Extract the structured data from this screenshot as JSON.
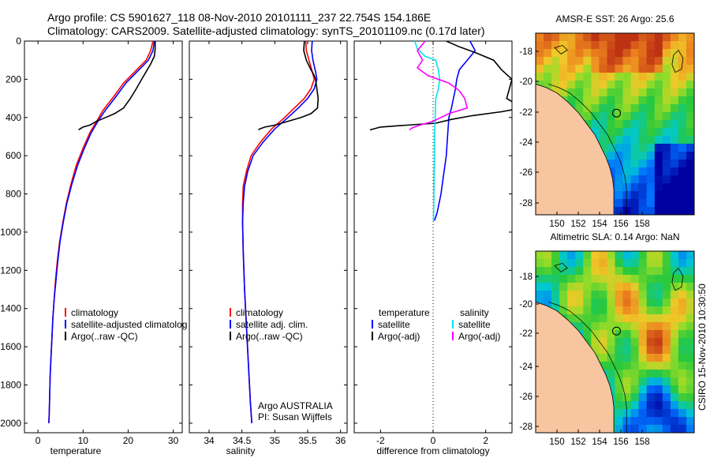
{
  "header": {
    "line1": "Argo profile: CS 5901627_118 08-Nov-2010 20101111_237 22.754S 154.186E",
    "line2": "Climatology: CARS2009. Satellite-adjusted climatology: synTS_20101109.nc (0.17d later)"
  },
  "side_stamp": "CSIRO 15-Nov-2010 10:30:50",
  "pi_text": {
    "line1": "Argo AUSTRALIA",
    "line2": "PI: Susan Wijffels"
  },
  "colors": {
    "climatology": "#ff0000",
    "satellite": "#0000ff",
    "argo": "#000000",
    "sat_salinity": "#00e5ee",
    "argo_salinity": "#ff00ff",
    "land": "#f7c59f"
  },
  "maps": [
    {
      "title": "AMSR-E SST: 26 Argo: 25.6",
      "xticks": [
        "150",
        "152",
        "154",
        "156",
        "158"
      ],
      "yticks": [
        "-18",
        "-20",
        "-22",
        "-24",
        "-26",
        "-28"
      ]
    },
    {
      "title": "Altimetric SLA: 0.14 Argo: NaN",
      "xticks": [
        "150",
        "152",
        "154",
        "156",
        "158"
      ],
      "yticks": [
        "-18",
        "-20",
        "-22",
        "-24",
        "-26",
        "-28"
      ]
    }
  ],
  "chart_data": [
    {
      "type": "line",
      "xlabel": "temperature",
      "ylabel": "",
      "xlim": [
        -3,
        32
      ],
      "ylim": [
        2050,
        0
      ],
      "xticks": [
        "0",
        "10",
        "20",
        "30"
      ],
      "yticks": [
        "0",
        "200",
        "400",
        "600",
        "800",
        "1000",
        "1200",
        "1400",
        "1600",
        "1800",
        "2000"
      ],
      "legend": [
        "climatology",
        "satellite-adjusted climatolog",
        "Argo(..raw -QC)"
      ],
      "series": [
        {
          "name": "climatology",
          "color": "#ff0000",
          "points": [
            [
              25.5,
              0
            ],
            [
              25,
              50
            ],
            [
              24,
              100
            ],
            [
              21.5,
              160
            ],
            [
              19,
              220
            ],
            [
              16.5,
              300
            ],
            [
              14.5,
              360
            ],
            [
              13,
              420
            ],
            [
              11.5,
              480
            ],
            [
              10,
              560
            ],
            [
              8.5,
              650
            ],
            [
              7.3,
              750
            ],
            [
              6.3,
              850
            ],
            [
              5.5,
              950
            ],
            [
              4.8,
              1050
            ],
            [
              4.3,
              1150
            ],
            [
              3.9,
              1250
            ],
            [
              3.6,
              1350
            ],
            [
              3.3,
              1450
            ],
            [
              3.1,
              1550
            ],
            [
              2.9,
              1650
            ],
            [
              2.7,
              1750
            ],
            [
              2.6,
              1850
            ],
            [
              2.5,
              1950
            ],
            [
              2.4,
              2000
            ]
          ]
        },
        {
          "name": "satellite-adjusted climatolog",
          "color": "#0000ff",
          "points": [
            [
              25.8,
              0
            ],
            [
              25.5,
              50
            ],
            [
              24.5,
              100
            ],
            [
              22,
              160
            ],
            [
              19.5,
              220
            ],
            [
              17,
              300
            ],
            [
              15,
              360
            ],
            [
              13.3,
              420
            ],
            [
              11.8,
              480
            ],
            [
              10.3,
              560
            ],
            [
              8.8,
              650
            ],
            [
              7.5,
              750
            ],
            [
              6.4,
              850
            ],
            [
              5.6,
              950
            ],
            [
              4.9,
              1050
            ],
            [
              4.4,
              1150
            ],
            [
              4,
              1250
            ],
            [
              3.6,
              1350
            ],
            [
              3.3,
              1450
            ],
            [
              3.1,
              1550
            ],
            [
              2.9,
              1650
            ],
            [
              2.7,
              1750
            ],
            [
              2.6,
              1850
            ],
            [
              2.5,
              1950
            ],
            [
              2.4,
              2000
            ]
          ]
        },
        {
          "name": "Argo(..raw -QC)",
          "color": "#000000",
          "points": [
            [
              26,
              0
            ],
            [
              26,
              40
            ],
            [
              25.8,
              80
            ],
            [
              25,
              120
            ],
            [
              24,
              160
            ],
            [
              23,
              200
            ],
            [
              21.8,
              250
            ],
            [
              20.5,
              300
            ],
            [
              19,
              350
            ],
            [
              17,
              380
            ],
            [
              15,
              400
            ],
            [
              13,
              420
            ],
            [
              11.5,
              440
            ],
            [
              10,
              450
            ],
            [
              9.3,
              460
            ],
            [
              9,
              465
            ]
          ]
        }
      ]
    },
    {
      "type": "line",
      "xlabel": "salinity",
      "ylabel": "",
      "xlim": [
        33.7,
        36.1
      ],
      "ylim": [
        2050,
        0
      ],
      "xticks": [
        "34",
        "34.5",
        "35",
        "35.5",
        "36"
      ],
      "yticks": [],
      "legend": [
        "climatology",
        "satellite adj. clim.",
        "Argo(..raw -QC)"
      ],
      "series": [
        {
          "name": "climatology",
          "color": "#ff0000",
          "points": [
            [
              35.47,
              0
            ],
            [
              35.48,
              50
            ],
            [
              35.52,
              100
            ],
            [
              35.57,
              160
            ],
            [
              35.6,
              200
            ],
            [
              35.55,
              250
            ],
            [
              35.45,
              300
            ],
            [
              35.3,
              350
            ],
            [
              35.15,
              400
            ],
            [
              34.95,
              460
            ],
            [
              34.78,
              530
            ],
            [
              34.64,
              600
            ],
            [
              34.57,
              680
            ],
            [
              34.52,
              760
            ],
            [
              34.51,
              850
            ],
            [
              34.51,
              950
            ],
            [
              34.52,
              1100
            ],
            [
              34.54,
              1300
            ],
            [
              34.57,
              1500
            ],
            [
              34.6,
              1700
            ],
            [
              34.63,
              1900
            ],
            [
              34.65,
              2000
            ]
          ]
        },
        {
          "name": "satellite adj. clim.",
          "color": "#0000ff",
          "points": [
            [
              35.57,
              0
            ],
            [
              35.56,
              50
            ],
            [
              35.58,
              100
            ],
            [
              35.62,
              160
            ],
            [
              35.64,
              200
            ],
            [
              35.6,
              250
            ],
            [
              35.5,
              300
            ],
            [
              35.36,
              350
            ],
            [
              35.2,
              400
            ],
            [
              35,
              460
            ],
            [
              34.82,
              530
            ],
            [
              34.67,
              600
            ],
            [
              34.59,
              680
            ],
            [
              34.54,
              760
            ],
            [
              34.52,
              850
            ],
            [
              34.51,
              950
            ],
            [
              34.52,
              1100
            ],
            [
              34.54,
              1300
            ],
            [
              34.57,
              1500
            ],
            [
              34.6,
              1700
            ],
            [
              34.63,
              1900
            ],
            [
              34.65,
              2000
            ]
          ]
        },
        {
          "name": "Argo(..raw -QC)",
          "color": "#000000",
          "points": [
            [
              35.45,
              0
            ],
            [
              35.44,
              50
            ],
            [
              35.48,
              100
            ],
            [
              35.55,
              150
            ],
            [
              35.6,
              180
            ],
            [
              35.62,
              200
            ],
            [
              35.64,
              250
            ],
            [
              35.66,
              300
            ],
            [
              35.65,
              350
            ],
            [
              35.55,
              380
            ],
            [
              35.4,
              400
            ],
            [
              35.2,
              420
            ],
            [
              35,
              440
            ],
            [
              34.85,
              450
            ],
            [
              34.77,
              460
            ],
            [
              34.75,
              465
            ]
          ]
        }
      ]
    },
    {
      "type": "line",
      "xlabel": "difference from climatology",
      "ylabel": "",
      "xlim": [
        -3,
        3
      ],
      "ylim": [
        2050,
        0
      ],
      "xticks": [
        "-2",
        "0",
        "2"
      ],
      "yticks": [],
      "zero_line": true,
      "legend": {
        "temperature": {
          "heading": "temperature",
          "satellite": "satellite",
          "argo": "Argo(-adj)"
        },
        "salinity": {
          "heading": "salinity",
          "satellite": "satellite",
          "argo": "Argo(-adj)"
        }
      },
      "series": [
        {
          "name": "satellite",
          "group": "temperature",
          "color": "#0000ff",
          "points": [
            [
              1.4,
              0
            ],
            [
              1.6,
              50
            ],
            [
              1.3,
              100
            ],
            [
              1.0,
              150
            ],
            [
              0.9,
              200
            ],
            [
              0.85,
              250
            ],
            [
              0.7,
              350
            ],
            [
              0.6,
              400
            ],
            [
              0.55,
              500
            ],
            [
              0.5,
              600
            ],
            [
              0.4,
              700
            ],
            [
              0.3,
              800
            ],
            [
              0.15,
              900
            ],
            [
              0.05,
              940
            ]
          ]
        },
        {
          "name": "Argo(-adj)",
          "group": "temperature",
          "color": "#000000",
          "points": [
            [
              0.5,
              0
            ],
            [
              1.0,
              30
            ],
            [
              1.6,
              60
            ],
            [
              2.3,
              100
            ],
            [
              2.6,
              150
            ],
            [
              3.0,
              200
            ],
            [
              2.8,
              300
            ],
            [
              3.4,
              350
            ],
            [
              2.6,
              370
            ],
            [
              1.5,
              390
            ],
            [
              0.7,
              410
            ],
            [
              0.1,
              430
            ],
            [
              -1,
              440
            ],
            [
              -2,
              450
            ],
            [
              -2.4,
              465
            ]
          ]
        },
        {
          "name": "satellite",
          "group": "salinity",
          "color": "#00e5ee",
          "points": [
            [
              -0.7,
              0
            ],
            [
              -0.6,
              40
            ],
            [
              -0.3,
              80
            ],
            [
              0.1,
              100
            ],
            [
              0.2,
              150
            ],
            [
              0.25,
              200
            ],
            [
              0.2,
              250
            ],
            [
              0.1,
              300
            ],
            [
              0.08,
              400
            ],
            [
              0.05,
              500
            ],
            [
              0.05,
              600
            ],
            [
              0.04,
              700
            ],
            [
              0.03,
              800
            ],
            [
              0.02,
              900
            ],
            [
              0.01,
              940
            ]
          ]
        },
        {
          "name": "Argo(-adj)",
          "group": "salinity",
          "color": "#ff00ff",
          "points": [
            [
              -0.3,
              0
            ],
            [
              -0.6,
              50
            ],
            [
              -0.4,
              100
            ],
            [
              -0.6,
              140
            ],
            [
              -0.2,
              180
            ],
            [
              0.6,
              220
            ],
            [
              1.0,
              260
            ],
            [
              1.2,
              300
            ],
            [
              1.3,
              350
            ],
            [
              0.6,
              380
            ],
            [
              0,
              420
            ],
            [
              -0.5,
              440
            ],
            [
              -0.8,
              455
            ],
            [
              -0.9,
              465
            ]
          ]
        }
      ]
    }
  ]
}
